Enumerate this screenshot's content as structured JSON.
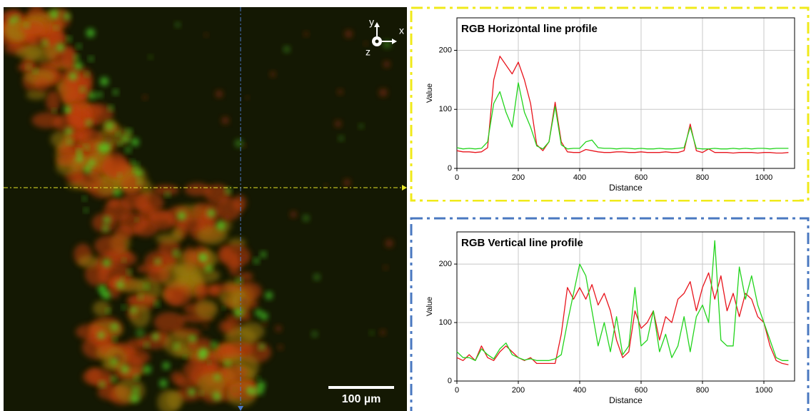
{
  "image": {
    "axis_y": "y",
    "axis_x": "x",
    "axis_z": "z",
    "scale_bar": "100 µm"
  },
  "chart_data": [
    {
      "type": "line",
      "title": "RGB Horizontal line profile",
      "x_label": "Distance",
      "y_label": "Value",
      "x": [
        0,
        20,
        40,
        60,
        80,
        100,
        120,
        140,
        160,
        180,
        200,
        220,
        240,
        260,
        280,
        300,
        320,
        340,
        360,
        380,
        400,
        420,
        440,
        460,
        480,
        500,
        520,
        540,
        560,
        580,
        600,
        620,
        640,
        660,
        680,
        700,
        720,
        740,
        760,
        780,
        800,
        820,
        840,
        860,
        880,
        900,
        920,
        940,
        960,
        980,
        1000,
        1020,
        1040,
        1060,
        1080
      ],
      "xlim": [
        0,
        1100
      ],
      "xticks": [
        0,
        200,
        400,
        600,
        800,
        1000
      ],
      "ylim": [
        0,
        255
      ],
      "yticks": [
        0,
        100,
        200
      ],
      "grid": true,
      "series": [
        {
          "color": "#e8141c",
          "values": [
            30,
            28,
            28,
            27,
            28,
            35,
            150,
            190,
            175,
            160,
            180,
            150,
            110,
            40,
            30,
            45,
            112,
            45,
            28,
            27,
            27,
            32,
            30,
            28,
            27,
            27,
            28,
            28,
            27,
            27,
            28,
            27,
            27,
            27,
            28,
            27,
            27,
            30,
            75,
            30,
            27,
            33,
            27,
            27,
            27,
            26,
            27,
            27,
            27,
            26,
            27,
            27,
            26,
            26,
            27
          ]
        },
        {
          "color": "#22d41c",
          "values": [
            35,
            33,
            34,
            33,
            34,
            45,
            110,
            130,
            95,
            70,
            145,
            95,
            70,
            38,
            33,
            45,
            105,
            40,
            33,
            34,
            34,
            45,
            48,
            35,
            34,
            34,
            33,
            34,
            34,
            33,
            34,
            33,
            33,
            34,
            33,
            33,
            34,
            35,
            70,
            34,
            33,
            33,
            34,
            33,
            33,
            34,
            33,
            34,
            33,
            34,
            34,
            33,
            34,
            34,
            34
          ]
        }
      ]
    },
    {
      "type": "line",
      "title": "RGB Vertical line profile",
      "x_label": "Distance",
      "y_label": "Value",
      "x": [
        0,
        20,
        40,
        60,
        80,
        100,
        120,
        140,
        160,
        180,
        200,
        220,
        240,
        260,
        280,
        300,
        320,
        340,
        360,
        380,
        400,
        420,
        440,
        460,
        480,
        500,
        520,
        540,
        560,
        580,
        600,
        620,
        640,
        660,
        680,
        700,
        720,
        740,
        760,
        780,
        800,
        820,
        840,
        860,
        880,
        900,
        920,
        940,
        960,
        980,
        1000,
        1020,
        1040,
        1060,
        1080
      ],
      "xlim": [
        0,
        1100
      ],
      "xticks": [
        0,
        200,
        400,
        600,
        800,
        1000
      ],
      "ylim": [
        0,
        255
      ],
      "yticks": [
        0,
        100,
        200
      ],
      "grid": true,
      "series": [
        {
          "color": "#e8141c",
          "values": [
            40,
            35,
            45,
            35,
            60,
            40,
            35,
            50,
            60,
            50,
            40,
            35,
            40,
            30,
            30,
            30,
            30,
            80,
            160,
            140,
            160,
            140,
            165,
            130,
            150,
            120,
            70,
            40,
            50,
            120,
            90,
            100,
            120,
            70,
            110,
            100,
            140,
            150,
            170,
            120,
            160,
            185,
            140,
            180,
            120,
            150,
            110,
            150,
            140,
            110,
            100,
            60,
            35,
            30,
            28
          ]
        },
        {
          "color": "#22d41c",
          "values": [
            50,
            40,
            40,
            35,
            55,
            45,
            38,
            55,
            65,
            45,
            40,
            36,
            38,
            35,
            35,
            35,
            38,
            45,
            100,
            150,
            200,
            180,
            120,
            60,
            100,
            50,
            110,
            45,
            60,
            160,
            60,
            70,
            120,
            50,
            80,
            40,
            60,
            110,
            50,
            110,
            130,
            100,
            240,
            70,
            60,
            60,
            195,
            140,
            180,
            130,
            100,
            70,
            40,
            35,
            35
          ]
        }
      ]
    }
  ]
}
